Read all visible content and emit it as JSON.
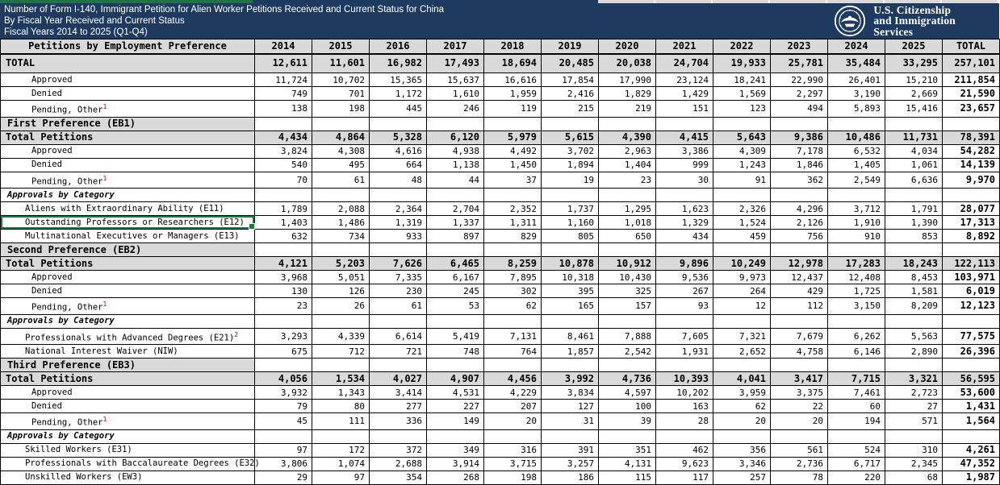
{
  "header": {
    "title_lines": [
      "Number of Form I-140, Immigrant Petition for Alien Worker Petitions Received and Current Status for China",
      "By Fiscal Year Received and Current Status",
      "Fiscal Years 2014 to 2025 (Q1-Q4)"
    ],
    "logo_lines": [
      "U.S. Citizenship",
      "and Immigration",
      "Services"
    ]
  },
  "colors": {
    "header_navy": "#1e3a5f",
    "strip_green": "#217346",
    "cell_gray": "#d9d9d9",
    "selection_green": "#1a7a3c",
    "footnote_red": "#c00000"
  },
  "table": {
    "label_header": "Petitions by Employment Preference",
    "columns": [
      "2014",
      "2015",
      "2016",
      "2017",
      "2018",
      "2019",
      "2020",
      "2021",
      "2022",
      "2023",
      "2024",
      "2025",
      "TOTAL"
    ],
    "rows": [
      {
        "label": "TOTAL",
        "type": "grand",
        "values": [
          "12,611",
          "11,601",
          "16,982",
          "17,493",
          "18,694",
          "20,485",
          "20,038",
          "24,704",
          "19,933",
          "25,781",
          "35,484",
          "33,295",
          "257,101"
        ]
      },
      {
        "label": "Approved",
        "type": "sub",
        "values": [
          "11,724",
          "10,702",
          "15,365",
          "15,637",
          "16,616",
          "17,854",
          "17,990",
          "23,124",
          "18,241",
          "22,990",
          "26,401",
          "15,210",
          "211,854"
        ]
      },
      {
        "label": "Denied",
        "type": "sub",
        "values": [
          "749",
          "701",
          "1,172",
          "1,610",
          "1,959",
          "2,416",
          "1,829",
          "1,429",
          "1,569",
          "2,297",
          "3,190",
          "2,669",
          "21,590"
        ]
      },
      {
        "label": "Pending, Other",
        "sup": "1",
        "type": "sub",
        "values": [
          "138",
          "198",
          "445",
          "246",
          "119",
          "215",
          "219",
          "151",
          "123",
          "494",
          "5,893",
          "15,416",
          "23,657"
        ]
      },
      {
        "label": "First Preference (EB1)",
        "type": "section",
        "values": []
      },
      {
        "label": "Total Petitions",
        "type": "subtotal",
        "values": [
          "4,434",
          "4,864",
          "5,328",
          "6,120",
          "5,979",
          "5,615",
          "4,390",
          "4,415",
          "5,643",
          "9,386",
          "10,486",
          "11,731",
          "78,391"
        ]
      },
      {
        "label": "Approved",
        "type": "sub",
        "values": [
          "3,824",
          "4,308",
          "4,616",
          "4,938",
          "4,492",
          "3,702",
          "2,963",
          "3,386",
          "4,309",
          "7,178",
          "6,532",
          "4,034",
          "54,282"
        ]
      },
      {
        "label": "Denied",
        "type": "sub",
        "values": [
          "540",
          "495",
          "664",
          "1,138",
          "1,450",
          "1,894",
          "1,404",
          "999",
          "1,243",
          "1,846",
          "1,405",
          "1,061",
          "14,139"
        ]
      },
      {
        "label": "Pending, Other",
        "sup": "1",
        "type": "sub",
        "values": [
          "70",
          "61",
          "48",
          "44",
          "37",
          "19",
          "23",
          "30",
          "91",
          "362",
          "2,549",
          "6,636",
          "9,970"
        ]
      },
      {
        "label": "Approvals by Category",
        "type": "cath",
        "values": []
      },
      {
        "label": "Aliens with Extraordinary Ability (E11)",
        "type": "cat",
        "values": [
          "1,789",
          "2,088",
          "2,364",
          "2,704",
          "2,352",
          "1,737",
          "1,295",
          "1,623",
          "2,326",
          "4,296",
          "3,712",
          "1,791",
          "28,077"
        ]
      },
      {
        "label": "Outstanding Professors or Researchers (E12)",
        "type": "cat",
        "selected": true,
        "values": [
          "1,403",
          "1,486",
          "1,319",
          "1,337",
          "1,311",
          "1,160",
          "1,018",
          "1,329",
          "1,524",
          "2,126",
          "1,910",
          "1,390",
          "17,313"
        ]
      },
      {
        "label": "Multinational Executives or Managers (E13)",
        "type": "cat",
        "values": [
          "632",
          "734",
          "933",
          "897",
          "829",
          "805",
          "650",
          "434",
          "459",
          "756",
          "910",
          "853",
          "8,892"
        ]
      },
      {
        "label": "Second Preference (EB2)",
        "type": "section",
        "values": []
      },
      {
        "label": "Total Petitions",
        "type": "subtotal",
        "values": [
          "4,121",
          "5,203",
          "7,626",
          "6,465",
          "8,259",
          "10,878",
          "10,912",
          "9,896",
          "10,249",
          "12,978",
          "17,283",
          "18,243",
          "122,113"
        ]
      },
      {
        "label": "Approved",
        "type": "sub",
        "values": [
          "3,968",
          "5,051",
          "7,335",
          "6,167",
          "7,895",
          "10,318",
          "10,430",
          "9,536",
          "9,973",
          "12,437",
          "12,408",
          "8,453",
          "103,971"
        ]
      },
      {
        "label": "Denied",
        "type": "sub",
        "values": [
          "130",
          "126",
          "230",
          "245",
          "302",
          "395",
          "325",
          "267",
          "264",
          "429",
          "1,725",
          "1,581",
          "6,019"
        ]
      },
      {
        "label": "Pending, Other",
        "sup": "1",
        "type": "sub",
        "values": [
          "23",
          "26",
          "61",
          "53",
          "62",
          "165",
          "157",
          "93",
          "12",
          "112",
          "3,150",
          "8,209",
          "12,123"
        ]
      },
      {
        "label": "Approvals by Category",
        "type": "cath",
        "values": []
      },
      {
        "label": "Professionals with Advanced Degrees (E21)",
        "sup": "2",
        "type": "cat",
        "values": [
          "3,293",
          "4,339",
          "6,614",
          "5,419",
          "7,131",
          "8,461",
          "7,888",
          "7,605",
          "7,321",
          "7,679",
          "6,262",
          "5,563",
          "77,575"
        ]
      },
      {
        "label": "National Interest Waiver (NIW)",
        "type": "cat",
        "values": [
          "675",
          "712",
          "721",
          "748",
          "764",
          "1,857",
          "2,542",
          "1,931",
          "2,652",
          "4,758",
          "6,146",
          "2,890",
          "26,396"
        ]
      },
      {
        "label": "Third Preference (EB3)",
        "type": "section",
        "values": []
      },
      {
        "label": "Total Petitions",
        "type": "subtotal",
        "values": [
          "4,056",
          "1,534",
          "4,027",
          "4,907",
          "4,456",
          "3,992",
          "4,736",
          "10,393",
          "4,041",
          "3,417",
          "7,715",
          "3,321",
          "56,595"
        ]
      },
      {
        "label": "Approved",
        "type": "sub",
        "values": [
          "3,932",
          "1,343",
          "3,414",
          "4,531",
          "4,229",
          "3,834",
          "4,597",
          "10,202",
          "3,959",
          "3,375",
          "7,461",
          "2,723",
          "53,600"
        ]
      },
      {
        "label": "Denied",
        "type": "sub",
        "values": [
          "79",
          "80",
          "277",
          "227",
          "207",
          "127",
          "100",
          "163",
          "62",
          "22",
          "60",
          "27",
          "1,431"
        ]
      },
      {
        "label": "Pending, Other",
        "sup": "1",
        "type": "sub",
        "values": [
          "45",
          "111",
          "336",
          "149",
          "20",
          "31",
          "39",
          "28",
          "20",
          "20",
          "194",
          "571",
          "1,564"
        ]
      },
      {
        "label": "Approvals by Category",
        "type": "cath",
        "values": []
      },
      {
        "label": "Skilled Workers (E31)",
        "type": "cat",
        "values": [
          "97",
          "172",
          "372",
          "349",
          "316",
          "391",
          "351",
          "462",
          "356",
          "561",
          "524",
          "310",
          "4,261"
        ]
      },
      {
        "label": "Professionals with Baccalaureate Degrees (E32)",
        "type": "cat",
        "values": [
          "3,806",
          "1,074",
          "2,688",
          "3,914",
          "3,715",
          "3,257",
          "4,131",
          "9,623",
          "3,346",
          "2,736",
          "6,717",
          "2,345",
          "47,352"
        ]
      },
      {
        "label": "Unskilled Workers (EW3)",
        "type": "cat",
        "values": [
          "29",
          "97",
          "354",
          "268",
          "198",
          "186",
          "115",
          "117",
          "257",
          "78",
          "220",
          "68",
          "1,987"
        ]
      }
    ]
  }
}
